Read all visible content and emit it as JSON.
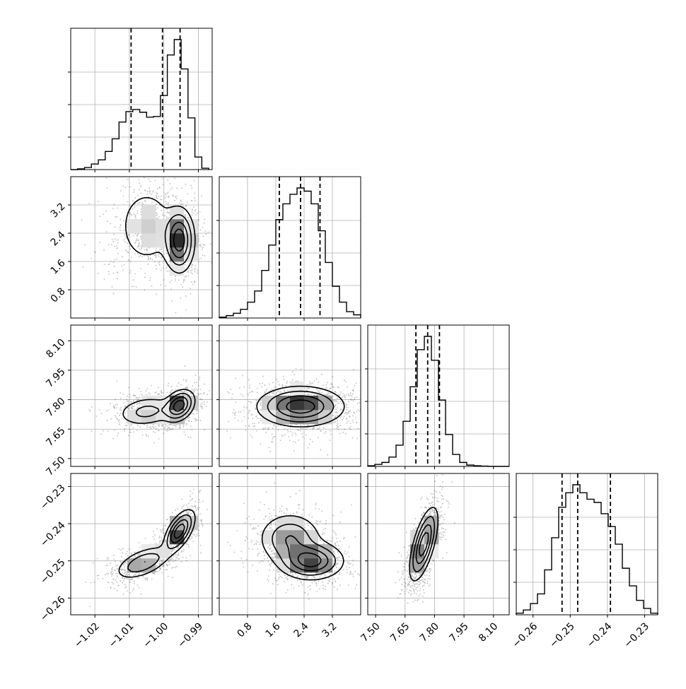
{
  "chart_data": {
    "type": "corner",
    "grid": true,
    "parameters": [
      {
        "tick_labels": [
          "−1.02",
          "−1.01",
          "−1.00",
          "−0.99"
        ],
        "ticks": [
          -1.02,
          -1.01,
          -1.0,
          -0.99
        ],
        "range": [
          -1.027,
          -0.986
        ],
        "quantiles": [
          -1.0095,
          -1.0004,
          -0.9953
        ]
      },
      {
        "tick_labels": [
          "0.8",
          "1.6",
          "2.4",
          "3.2"
        ],
        "ticks": [
          0.8,
          1.6,
          2.4,
          3.2
        ],
        "range": [
          0.0,
          4.0
        ],
        "quantiles": [
          1.7,
          2.3,
          2.85
        ]
      },
      {
        "tick_labels": [
          "7.50",
          "7.65",
          "7.80",
          "7.95",
          "8.10"
        ],
        "ticks": [
          7.5,
          7.65,
          7.8,
          7.95,
          8.1
        ],
        "range": [
          7.46,
          8.18
        ],
        "quantiles": [
          7.705,
          7.765,
          7.825
        ]
      },
      {
        "tick_labels": [
          "−0.26",
          "−0.25",
          "−0.24",
          "−0.23"
        ],
        "ticks": [
          -0.26,
          -0.25,
          -0.24,
          -0.23
        ],
        "range": [
          -0.2645,
          -0.2265
        ],
        "quantiles": [
          -0.2522,
          -0.248,
          -0.2392
        ]
      }
    ],
    "histograms": [
      {
        "edges": [
          -1.027,
          -1.025,
          -1.023,
          -1.021,
          -1.019,
          -1.017,
          -1.015,
          -1.013,
          -1.011,
          -1.009,
          -1.007,
          -1.005,
          -1.003,
          -1.001,
          -0.999,
          -0.997,
          -0.995,
          -0.993,
          -0.991,
          -0.989,
          -0.987
        ],
        "counts": [
          0.0,
          0.5,
          1.5,
          4.0,
          7.0,
          13.0,
          22.0,
          34.0,
          41.5,
          43.0,
          41.0,
          37.5,
          38.0,
          53.0,
          82.0,
          93.0,
          72.0,
          37.0,
          9.0,
          1.0
        ]
      },
      {
        "edges": [
          0.0,
          0.2,
          0.4,
          0.6,
          0.8,
          1.0,
          1.2,
          1.4,
          1.6,
          1.8,
          2.0,
          2.2,
          2.4,
          2.6,
          2.8,
          3.0,
          3.2,
          3.4,
          3.6,
          3.8,
          4.0
        ],
        "counts": [
          0.5,
          1.5,
          3.0,
          5.5,
          10.0,
          17.0,
          30.0,
          46.0,
          62.0,
          72.0,
          78.0,
          82.0,
          80.0,
          72.0,
          55.0,
          35.0,
          20.0,
          10.0,
          4.0,
          2.0
        ]
      },
      {
        "edges": [
          7.46,
          7.496,
          7.532,
          7.568,
          7.604,
          7.64,
          7.676,
          7.712,
          7.748,
          7.784,
          7.82,
          7.856,
          7.892,
          7.928,
          7.964,
          8.0,
          8.036,
          8.072,
          8.108,
          8.144,
          8.18
        ],
        "counts": [
          0.5,
          1.5,
          3.0,
          7.0,
          16.0,
          34.0,
          60.0,
          88.0,
          98.0,
          80.0,
          50.0,
          24.0,
          9.0,
          3.0,
          1.0,
          0.5,
          0.2,
          0.0,
          0.0,
          0.0
        ]
      },
      {
        "edges": [
          -0.2645,
          -0.2626,
          -0.2607,
          -0.2588,
          -0.2569,
          -0.255,
          -0.2531,
          -0.2512,
          -0.2493,
          -0.2474,
          -0.2455,
          -0.2436,
          -0.2417,
          -0.2398,
          -0.2379,
          -0.236,
          -0.2341,
          -0.2322,
          -0.2303,
          -0.2284,
          -0.2265
        ],
        "counts": [
          1.0,
          3.0,
          7.0,
          13.0,
          28.0,
          48.0,
          67.0,
          76.0,
          81.0,
          76.0,
          72.0,
          70.0,
          63.0,
          55.0,
          44.0,
          29.0,
          18.0,
          9.0,
          4.0,
          1.0
        ]
      }
    ],
    "joint_modes": [
      {
        "pair": [
          1,
          0
        ],
        "modes": [
          {
            "mx": -1.005,
            "my": 2.6,
            "sx": 0.0045,
            "sy": 0.6,
            "r": 0.0,
            "w": 0.45
          },
          {
            "mx": -0.9955,
            "my": 2.2,
            "sx": 0.0022,
            "sy": 0.45,
            "r": 0.0,
            "w": 0.55
          }
        ]
      },
      {
        "pair": [
          2,
          0
        ],
        "modes": [
          {
            "mx": -1.005,
            "my": 7.74,
            "sx": 0.0045,
            "sy": 0.04,
            "r": 0.2,
            "w": 0.45
          },
          {
            "mx": -0.9955,
            "my": 7.77,
            "sx": 0.0022,
            "sy": 0.04,
            "r": 0.3,
            "w": 0.55
          }
        ]
      },
      {
        "pair": [
          2,
          1
        ],
        "modes": [
          {
            "mx": 2.3,
            "my": 7.765,
            "sx": 0.6,
            "sy": 0.05,
            "r": 0.0,
            "w": 1.0
          }
        ]
      },
      {
        "pair": [
          3,
          0
        ],
        "modes": [
          {
            "mx": -1.006,
            "my": -0.2505,
            "sx": 0.004,
            "sy": 0.0022,
            "r": 0.55,
            "w": 0.45
          },
          {
            "mx": -0.9955,
            "my": -0.242,
            "sx": 0.0022,
            "sy": 0.0028,
            "r": 0.6,
            "w": 0.55
          }
        ]
      },
      {
        "pair": [
          3,
          1
        ],
        "modes": [
          {
            "mx": 2.0,
            "my": -0.244,
            "sx": 0.45,
            "sy": 0.0035,
            "r": 0.0,
            "w": 0.45
          },
          {
            "mx": 2.6,
            "my": -0.25,
            "sx": 0.45,
            "sy": 0.0025,
            "r": 0.0,
            "w": 0.55
          }
        ]
      },
      {
        "pair": [
          3,
          2
        ],
        "modes": [
          {
            "mx": 7.745,
            "my": -0.2455,
            "sx": 0.035,
            "sy": 0.0048,
            "r": 0.65,
            "w": 1.0
          }
        ]
      }
    ]
  }
}
